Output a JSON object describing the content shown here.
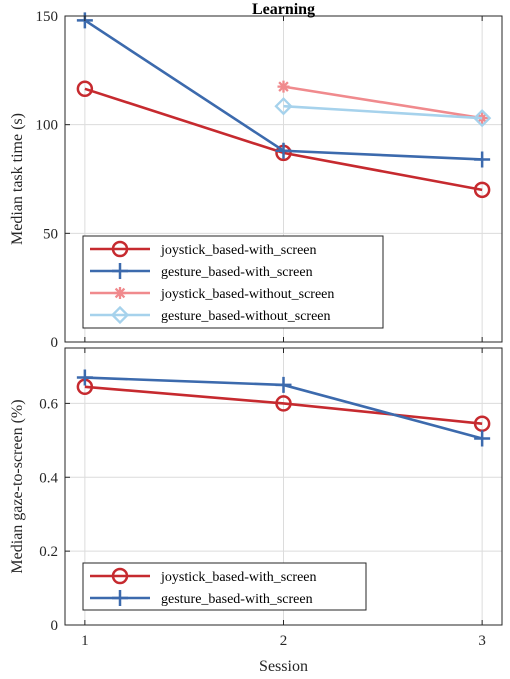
{
  "chart_data": [
    {
      "type": "line",
      "title": "Learning",
      "xlabel": "",
      "ylabel": "Median task time (s)",
      "x": [
        1,
        2,
        3
      ],
      "xlim": [
        0.9,
        3.1
      ],
      "ylim": [
        0,
        150
      ],
      "yticks": [
        0,
        50,
        100,
        150
      ],
      "grid": true,
      "legend_position": "bottom-left",
      "series": [
        {
          "name": "joystick_based-with_screen",
          "x": [
            1,
            2,
            3
          ],
          "values": [
            116.5,
            87,
            70
          ],
          "color": "#c62a2f",
          "marker": "circle"
        },
        {
          "name": "gesture_based-with_screen",
          "x": [
            1,
            2,
            3
          ],
          "values": [
            148,
            88,
            84
          ],
          "color": "#3c6aad",
          "marker": "plus"
        },
        {
          "name": "joystick_based-without_screen",
          "x": [
            2,
            3
          ],
          "values": [
            117.5,
            103
          ],
          "color": "#f08a8d",
          "marker": "asterisk"
        },
        {
          "name": "gesture_based-without_screen",
          "x": [
            2,
            3
          ],
          "values": [
            108.5,
            103
          ],
          "color": "#a6d2ec",
          "marker": "diamond"
        }
      ]
    },
    {
      "type": "line",
      "title": "",
      "xlabel": "Session",
      "ylabel": "Median gaze-to-screen (%)",
      "x": [
        1,
        2,
        3
      ],
      "xlim": [
        0.9,
        3.1
      ],
      "ylim": [
        0,
        0.75
      ],
      "yticks": [
        0,
        0.2,
        0.4,
        0.6
      ],
      "xticks": [
        1,
        2,
        3
      ],
      "grid": true,
      "legend_position": "bottom-left",
      "series": [
        {
          "name": "joystick_based-with_screen",
          "x": [
            1,
            2,
            3
          ],
          "values": [
            0.645,
            0.6,
            0.545
          ],
          "color": "#c62a2f",
          "marker": "circle"
        },
        {
          "name": "gesture_based-with_screen",
          "x": [
            1,
            2,
            3
          ],
          "values": [
            0.67,
            0.65,
            0.505
          ],
          "color": "#3c6aad",
          "marker": "plus"
        }
      ]
    }
  ]
}
